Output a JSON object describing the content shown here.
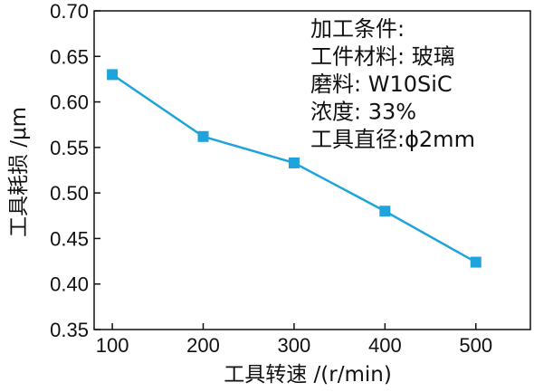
{
  "chart_data": {
    "type": "line",
    "x": [
      100,
      200,
      300,
      400,
      500
    ],
    "series": [
      {
        "values": [
          0.63,
          0.562,
          0.533,
          0.48,
          0.424
        ],
        "color": "#1fa3dc",
        "marker": "square"
      }
    ],
    "xlabel": "工具转速 /(r/min)",
    "ylabel": "工具耗损 /μm",
    "xlim": [
      80,
      560
    ],
    "ylim": [
      0.35,
      0.7
    ],
    "xticks": [
      100,
      200,
      300,
      400,
      500
    ],
    "xtick_labels": [
      "100",
      "200",
      "300",
      "400",
      "500"
    ],
    "yticks": [
      0.35,
      0.4,
      0.45,
      0.5,
      0.55,
      0.6,
      0.65,
      0.7
    ],
    "ytick_labels": [
      "0.35",
      "0.40",
      "0.45",
      "0.50",
      "0.55",
      "0.60",
      "0.65",
      "0.70"
    ],
    "grid": false,
    "annotation": [
      "加工条件:",
      "工件材料: 玻璃",
      "磨料: W10SiC",
      "浓度: 33%",
      "工具直径:ϕ2mm"
    ]
  }
}
